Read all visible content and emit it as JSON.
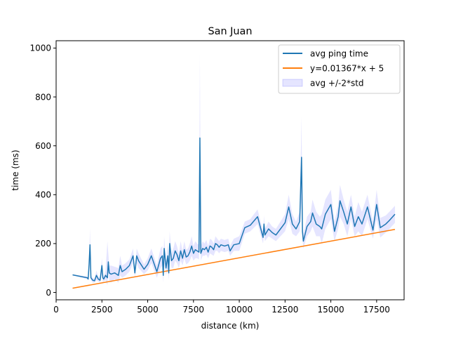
{
  "chart_data": {
    "type": "line",
    "title": "San Juan",
    "xlabel": "distance (km)",
    "ylabel": "time (ms)",
    "xlim": [
      0,
      19000
    ],
    "ylim": [
      -30,
      1030
    ],
    "xticks": [
      0,
      2500,
      5000,
      7500,
      10000,
      12500,
      15000,
      17500
    ],
    "xtick_labels": [
      "0",
      "2500",
      "5000",
      "7500",
      "10000",
      "12500",
      "15000",
      "17500"
    ],
    "yticks": [
      0,
      200,
      400,
      600,
      800,
      1000
    ],
    "ytick_labels": [
      "0",
      "200",
      "400",
      "600",
      "800",
      "1000"
    ],
    "grid": false,
    "legend_position": "top-right",
    "colors": {
      "avg": "#1f77b4",
      "fit": "#ff7f0e",
      "band": "#0000ff"
    },
    "series": [
      {
        "name": "avg ping time",
        "kind": "line",
        "x": [
          900,
          1700,
          1750,
          1800,
          1850,
          1900,
          2000,
          2100,
          2200,
          2300,
          2400,
          2500,
          2550,
          2600,
          2700,
          2800,
          2850,
          2900,
          3000,
          3200,
          3400,
          3500,
          3600,
          3800,
          4000,
          4200,
          4300,
          4400,
          4500,
          4800,
          5000,
          5200,
          5500,
          5700,
          5800,
          5850,
          5900,
          6000,
          6100,
          6150,
          6200,
          6300,
          6400,
          6500,
          6600,
          6700,
          6800,
          6900,
          7000,
          7100,
          7200,
          7300,
          7400,
          7500,
          7600,
          7700,
          7800,
          7850,
          7900,
          7950,
          8000,
          8100,
          8200,
          8300,
          8400,
          8500,
          8600,
          8700,
          8800,
          8900,
          9000,
          9200,
          9400,
          9500,
          9700,
          10000,
          10300,
          10600,
          11000,
          11300,
          11350,
          11400,
          11600,
          11800,
          12000,
          12500,
          12700,
          12900,
          13100,
          13300,
          13400,
          13450,
          13500,
          13700,
          13900,
          14000,
          14200,
          14400,
          14500,
          14700,
          15000,
          15200,
          15400,
          15500,
          15700,
          15900,
          16100,
          16300,
          16500,
          16700,
          17000,
          17300,
          17500,
          17700,
          18000,
          18200,
          18500
        ],
        "y": [
          72,
          60,
          55,
          115,
          195,
          60,
          50,
          48,
          70,
          55,
          50,
          110,
          60,
          55,
          70,
          60,
          125,
          80,
          75,
          80,
          70,
          110,
          85,
          95,
          110,
          150,
          80,
          150,
          130,
          95,
          115,
          150,
          85,
          140,
          150,
          70,
          180,
          100,
          150,
          80,
          200,
          130,
          140,
          170,
          155,
          130,
          170,
          140,
          175,
          145,
          150,
          165,
          190,
          160,
          175,
          170,
          165,
          632,
          160,
          170,
          180,
          175,
          185,
          165,
          190,
          185,
          175,
          200,
          195,
          185,
          195,
          190,
          195,
          170,
          195,
          200,
          265,
          275,
          310,
          225,
          280,
          235,
          260,
          245,
          235,
          285,
          350,
          280,
          260,
          290,
          553,
          250,
          210,
          270,
          290,
          325,
          280,
          270,
          260,
          320,
          360,
          250,
          310,
          375,
          330,
          280,
          350,
          270,
          310,
          280,
          350,
          255,
          360,
          265,
          280,
          295,
          320
        ]
      },
      {
        "name": "y=0.01367*x + 5",
        "kind": "line",
        "x": [
          900,
          18500
        ],
        "y": [
          17.3,
          257.9
        ]
      },
      {
        "name": "avg +/-2*std",
        "kind": "band",
        "x": [
          900,
          1700,
          1750,
          1800,
          1850,
          1900,
          2000,
          2100,
          2200,
          2300,
          2400,
          2500,
          2550,
          2600,
          2700,
          2800,
          2850,
          2900,
          3000,
          3200,
          3400,
          3500,
          3600,
          3800,
          4000,
          4200,
          4300,
          4400,
          4500,
          4800,
          5000,
          5200,
          5500,
          5700,
          5800,
          5850,
          5900,
          6000,
          6100,
          6150,
          6200,
          6300,
          6400,
          6500,
          6600,
          6700,
          6800,
          6900,
          7000,
          7100,
          7200,
          7300,
          7400,
          7500,
          7600,
          7700,
          7800,
          7850,
          7900,
          7950,
          8000,
          8100,
          8200,
          8300,
          8400,
          8500,
          8600,
          8700,
          8800,
          8900,
          9000,
          9200,
          9400,
          9500,
          9700,
          10000,
          10300,
          10600,
          11000,
          11300,
          11350,
          11400,
          11600,
          11800,
          12000,
          12500,
          12700,
          12900,
          13100,
          13300,
          13400,
          13450,
          13500,
          13700,
          13900,
          14000,
          14200,
          14400,
          14500,
          14700,
          15000,
          15200,
          15400,
          15500,
          15700,
          15900,
          16100,
          16300,
          16500,
          16700,
          17000,
          17300,
          17500,
          17700,
          18000,
          18200,
          18500
        ],
        "lower": [
          70,
          55,
          48,
          90,
          130,
          50,
          40,
          40,
          50,
          45,
          40,
          80,
          40,
          45,
          50,
          30,
          90,
          50,
          40,
          55,
          40,
          70,
          60,
          70,
          85,
          120,
          60,
          120,
          100,
          75,
          90,
          120,
          60,
          100,
          110,
          40,
          130,
          70,
          100,
          50,
          150,
          100,
          100,
          130,
          120,
          100,
          130,
          110,
          140,
          115,
          120,
          130,
          150,
          130,
          140,
          140,
          135,
          290,
          130,
          140,
          150,
          150,
          155,
          140,
          160,
          155,
          150,
          170,
          170,
          160,
          170,
          165,
          170,
          150,
          170,
          170,
          240,
          250,
          280,
          200,
          245,
          210,
          230,
          220,
          210,
          250,
          300,
          240,
          230,
          250,
          380,
          215,
          180,
          230,
          250,
          270,
          230,
          230,
          200,
          260,
          300,
          210,
          260,
          310,
          280,
          230,
          300,
          230,
          250,
          230,
          300,
          220,
          300,
          225,
          245,
          260,
          285
        ],
        "upper": [
          74,
          65,
          62,
          140,
          260,
          70,
          60,
          56,
          90,
          65,
          60,
          140,
          80,
          65,
          90,
          210,
          160,
          110,
          110,
          105,
          100,
          150,
          110,
          120,
          135,
          180,
          100,
          180,
          160,
          115,
          140,
          180,
          110,
          180,
          190,
          100,
          230,
          130,
          200,
          110,
          250,
          160,
          180,
          210,
          190,
          160,
          210,
          170,
          210,
          175,
          180,
          200,
          230,
          190,
          210,
          200,
          195,
          975,
          190,
          200,
          210,
          200,
          215,
          190,
          220,
          215,
          200,
          230,
          220,
          210,
          220,
          215,
          220,
          190,
          220,
          230,
          290,
          300,
          340,
          250,
          315,
          260,
          290,
          270,
          260,
          320,
          400,
          320,
          290,
          330,
          720,
          285,
          240,
          310,
          330,
          380,
          330,
          310,
          320,
          380,
          420,
          290,
          360,
          440,
          380,
          330,
          400,
          310,
          370,
          330,
          400,
          290,
          420,
          305,
          315,
          330,
          355
        ]
      }
    ]
  }
}
